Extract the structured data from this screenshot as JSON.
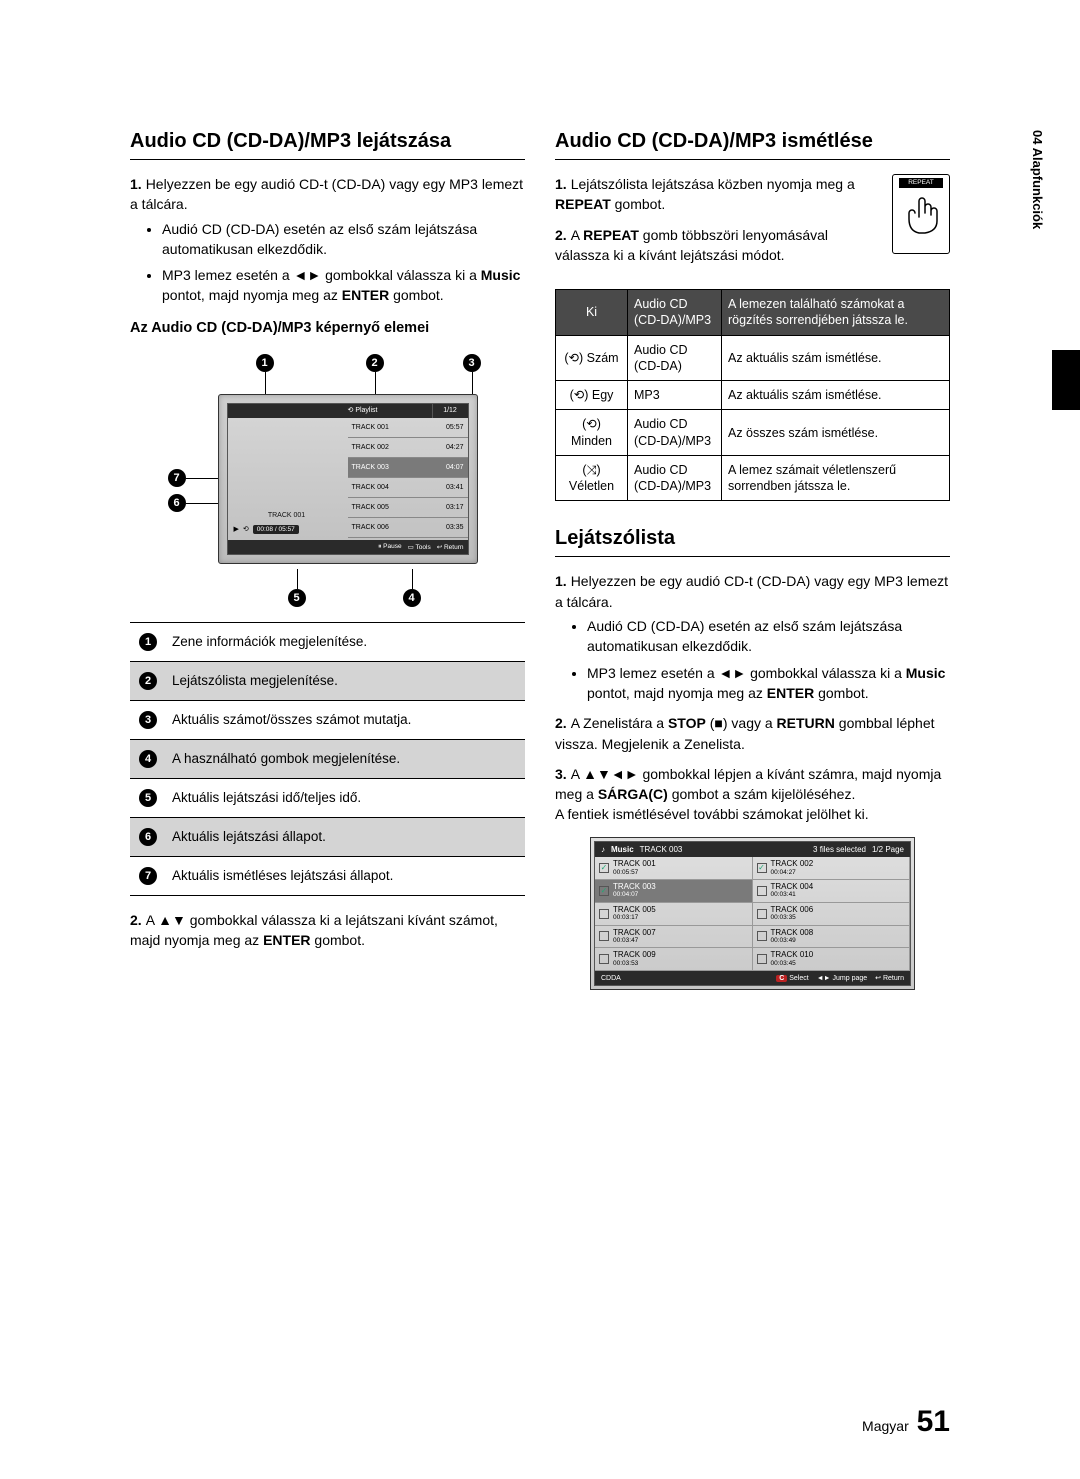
{
  "sideTab": "04  Alapfunkciók",
  "left": {
    "title": "Audio CD (CD-DA)/MP3 lejátszása",
    "step1_a": "Helyezzen be egy audió CD-t (CD-DA) vagy egy MP3 lemezt a tálcára.",
    "step1_b1": "Audió CD (CD-DA) esetén az első szám lejátszása automatikusan elkezdődik.",
    "step1_b2_pre": "MP3 lemez esetén a ◄► gombokkal válassza ki a ",
    "step1_b2_bold1": "Music",
    "step1_b2_mid": " pontot, majd nyomja meg az ",
    "step1_b2_bold2": "ENTER",
    "step1_b2_post": " gombot.",
    "subhead": "Az Audio CD (CD-DA)/MP3 képernyő elemei",
    "step2_pre": "A ▲▼ gombokkal válassza ki a lejátszani kívánt számot, majd nyomja meg az ",
    "step2_bold": "ENTER",
    "step2_post": " gombot.",
    "player": {
      "playlistLabel": "Playlist",
      "count": "1/12",
      "trackInfo": "TRACK 001",
      "time": "00:08 / 05:57",
      "tracks": [
        {
          "name": "TRACK 001",
          "dur": "05:57"
        },
        {
          "name": "TRACK 002",
          "dur": "04:27"
        },
        {
          "name": "TRACK 003",
          "dur": "04:07"
        },
        {
          "name": "TRACK 004",
          "dur": "03:41"
        },
        {
          "name": "TRACK 005",
          "dur": "03:17"
        },
        {
          "name": "TRACK 006",
          "dur": "03:35"
        }
      ],
      "footPause": "Pause",
      "footTools": "Tools",
      "footReturn": "Return"
    },
    "legend": [
      "Zene információk megjelenítése.",
      "Lejátszólista megjelenítése.",
      "Aktuális számot/összes számot mutatja.",
      "A használható gombok megjelenítése.",
      "Aktuális lejátszási idő/teljes idő.",
      "Aktuális lejátszási állapot.",
      "Aktuális ismétléses lejátszási állapot."
    ]
  },
  "right": {
    "title1": "Audio CD (CD-DA)/MP3 ismétlése",
    "r1_step1_pre": "Lejátszólista lejátszása közben nyomja meg a ",
    "r1_step1_bold": "REPEAT",
    "r1_step1_post": " gombot.",
    "r1_step2_pre": "A ",
    "r1_step2_bold": "REPEAT",
    "r1_step2_post": " gomb többszöri lenyomásával válassza ki a kívánt lejátszási módot.",
    "remoteLabel": "REPEAT",
    "repeatTable": {
      "rows": [
        {
          "mode": "Ki",
          "type": "Audio CD (CD-DA)/MP3",
          "desc": "A lemezen található számokat a rögzítés sorrendjében játssza le."
        },
        {
          "mode": "(⟲) Szám",
          "type": "Audio CD (CD-DA)",
          "desc": "Az aktuális szám ismétlése."
        },
        {
          "mode": "(⟲) Egy",
          "type": "MP3",
          "desc": "Az aktuális szám ismétlése."
        },
        {
          "mode": "(⟲) Minden",
          "type": "Audio CD (CD-DA)/MP3",
          "desc": "Az összes szám ismétlése."
        },
        {
          "mode": "(⤨) Véletlen",
          "type": "Audio CD (CD-DA)/MP3",
          "desc": "A lemez számait véletlenszerű sorrendben játssza le."
        }
      ]
    },
    "title2": "Lejátszólista",
    "r2_step1_a": "Helyezzen be egy audió CD-t (CD-DA) vagy egy MP3 lemezt a tálcára.",
    "r2_step1_b1": "Audió CD (CD-DA) esetén az első szám lejátszása automatikusan elkezdődik.",
    "r2_step1_b2_pre": "MP3 lemez esetén a ◄► gombokkal válassza ki a ",
    "r2_step1_b2_bold1": "Music",
    "r2_step1_b2_mid": " pontot, majd nyomja meg az ",
    "r2_step1_b2_bold2": "ENTER",
    "r2_step1_b2_post": " gombot.",
    "r2_step2_pre": "A Zenelistára a ",
    "r2_step2_bold1": "STOP",
    "r2_step2_mid1": " (■) vagy a ",
    "r2_step2_bold2": "RETURN",
    "r2_step2_post": " gombbal léphet vissza. Megjelenik a Zenelista.",
    "r2_step3_pre": "A ▲▼◄► gombokkal lépjen a kívánt számra, majd nyomja meg a ",
    "r2_step3_bold": "SÁRGA(C)",
    "r2_step3_post": " gombot a szám kijelöléséhez.",
    "r2_step3_extra": "A fentiek ismétlésével további számokat jelölhet ki.",
    "browser": {
      "headIcon": "♪",
      "headTitle": "Music",
      "headTrack": "TRACK 003",
      "headSel": "3 files selected",
      "headPage": "1/2 Page",
      "tracks": [
        {
          "n": "TRACK 001",
          "d": "00:05:57",
          "c": true
        },
        {
          "n": "TRACK 002",
          "d": "00:04:27",
          "c": true
        },
        {
          "n": "TRACK 003",
          "d": "00:04:07",
          "c": true,
          "sel": true
        },
        {
          "n": "TRACK 004",
          "d": "00:03:41",
          "c": false
        },
        {
          "n": "TRACK 005",
          "d": "00:03:17",
          "c": false
        },
        {
          "n": "TRACK 006",
          "d": "00:03:35",
          "c": false
        },
        {
          "n": "TRACK 007",
          "d": "00:03:47",
          "c": false
        },
        {
          "n": "TRACK 008",
          "d": "00:03:49",
          "c": false
        },
        {
          "n": "TRACK 009",
          "d": "00:03:53",
          "c": false
        },
        {
          "n": "TRACK 010",
          "d": "00:03:45",
          "c": false
        }
      ],
      "footCDDA": "CDDA",
      "footSelect": "Select",
      "footJump": "Jump page",
      "footReturn": "Return"
    }
  },
  "footer": {
    "lang": "Magyar",
    "page": "51"
  }
}
